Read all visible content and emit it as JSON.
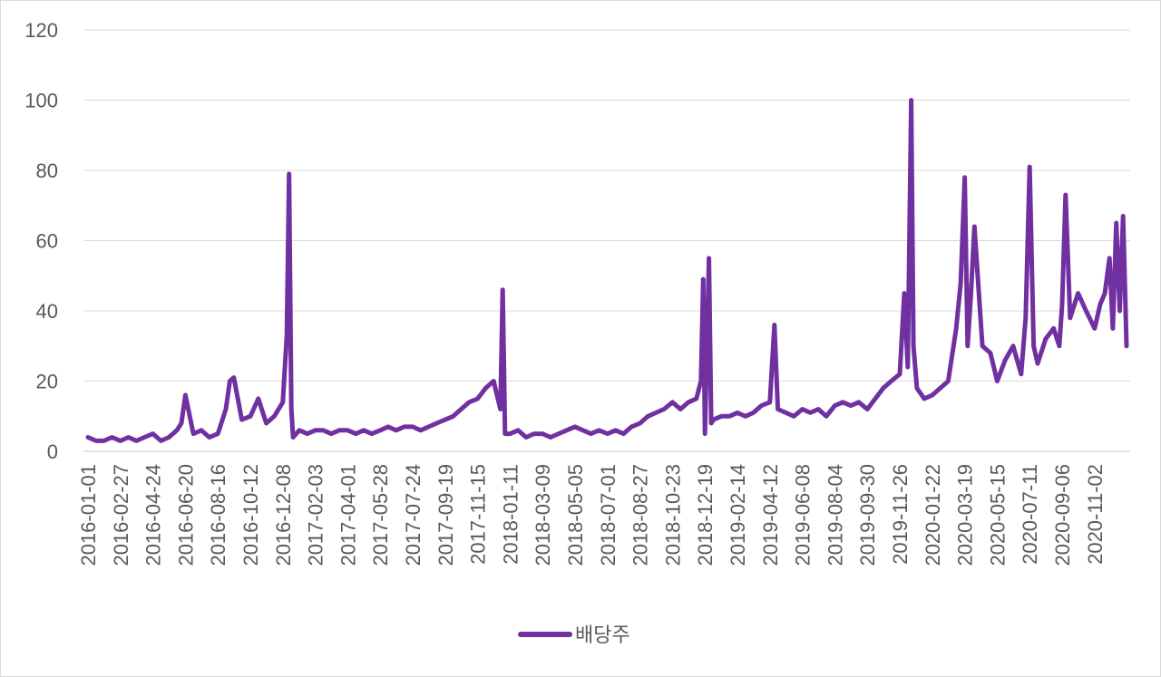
{
  "chart_data": {
    "type": "line",
    "title": "",
    "xlabel": "",
    "ylabel": "",
    "ylim": [
      0,
      120
    ],
    "yticks": [
      0,
      20,
      40,
      60,
      80,
      100,
      120
    ],
    "grid": "horizontal",
    "legend_position": "bottom",
    "series_color": "#7030A0",
    "grid_color": "#d9d9d9",
    "x_tick_labels": [
      "2016-01-01",
      "2016-02-27",
      "2016-04-24",
      "2016-06-20",
      "2016-08-16",
      "2016-10-12",
      "2016-12-08",
      "2017-02-03",
      "2017-04-01",
      "2017-05-28",
      "2017-07-24",
      "2017-09-19",
      "2017-11-15",
      "2018-01-11",
      "2018-03-09",
      "2018-05-05",
      "2018-07-01",
      "2018-08-27",
      "2018-10-23",
      "2018-12-19",
      "2019-02-14",
      "2019-04-12",
      "2019-06-08",
      "2019-08-04",
      "2019-09-30",
      "2019-11-26",
      "2020-01-22",
      "2020-03-19",
      "2020-05-15",
      "2020-07-11",
      "2020-09-06",
      "2020-11-02"
    ],
    "series": [
      {
        "name": "배당주",
        "x": [
          "2016-01-01",
          "2016-01-15",
          "2016-01-29",
          "2016-02-12",
          "2016-02-27",
          "2016-03-12",
          "2016-03-26",
          "2016-04-09",
          "2016-04-24",
          "2016-05-08",
          "2016-05-22",
          "2016-06-05",
          "2016-06-13",
          "2016-06-20",
          "2016-07-04",
          "2016-07-18",
          "2016-08-01",
          "2016-08-16",
          "2016-08-30",
          "2016-09-06",
          "2016-09-13",
          "2016-09-27",
          "2016-10-12",
          "2016-10-26",
          "2016-11-09",
          "2016-11-23",
          "2016-12-08",
          "2016-12-15",
          "2016-12-19",
          "2016-12-23",
          "2016-12-26",
          "2017-01-06",
          "2017-01-20",
          "2017-02-03",
          "2017-02-17",
          "2017-03-03",
          "2017-03-17",
          "2017-04-01",
          "2017-04-15",
          "2017-04-29",
          "2017-05-13",
          "2017-05-28",
          "2017-06-11",
          "2017-06-25",
          "2017-07-09",
          "2017-07-24",
          "2017-08-07",
          "2017-08-21",
          "2017-09-04",
          "2017-09-19",
          "2017-10-03",
          "2017-10-17",
          "2017-10-31",
          "2017-11-15",
          "2017-11-29",
          "2017-12-13",
          "2017-12-25",
          "2017-12-29",
          "2018-01-02",
          "2018-01-11",
          "2018-01-25",
          "2018-02-08",
          "2018-02-22",
          "2018-03-09",
          "2018-03-23",
          "2018-04-06",
          "2018-04-20",
          "2018-05-05",
          "2018-05-19",
          "2018-06-02",
          "2018-06-16",
          "2018-07-01",
          "2018-07-15",
          "2018-07-29",
          "2018-08-12",
          "2018-08-27",
          "2018-09-10",
          "2018-09-24",
          "2018-10-08",
          "2018-10-23",
          "2018-11-06",
          "2018-11-20",
          "2018-12-04",
          "2018-12-12",
          "2018-12-16",
          "2018-12-19",
          "2018-12-26",
          "2018-12-30",
          "2019-01-03",
          "2019-01-17",
          "2019-01-31",
          "2019-02-14",
          "2019-02-28",
          "2019-03-14",
          "2019-03-28",
          "2019-04-12",
          "2019-04-20",
          "2019-04-26",
          "2019-05-10",
          "2019-05-24",
          "2019-06-08",
          "2019-06-22",
          "2019-07-06",
          "2019-07-20",
          "2019-08-04",
          "2019-08-18",
          "2019-09-01",
          "2019-09-15",
          "2019-09-30",
          "2019-10-14",
          "2019-10-28",
          "2019-11-11",
          "2019-11-26",
          "2019-12-04",
          "2019-12-10",
          "2019-12-16",
          "2019-12-20",
          "2019-12-26",
          "2020-01-08",
          "2020-01-22",
          "2020-02-05",
          "2020-02-19",
          "2020-03-04",
          "2020-03-12",
          "2020-03-19",
          "2020-03-24",
          "2020-03-30",
          "2020-04-05",
          "2020-04-19",
          "2020-05-03",
          "2020-05-15",
          "2020-05-29",
          "2020-06-12",
          "2020-06-26",
          "2020-07-04",
          "2020-07-11",
          "2020-07-18",
          "2020-07-25",
          "2020-08-08",
          "2020-08-22",
          "2020-09-01",
          "2020-09-06",
          "2020-09-12",
          "2020-09-20",
          "2020-10-04",
          "2020-10-18",
          "2020-11-02",
          "2020-11-12",
          "2020-11-20",
          "2020-11-28",
          "2020-12-04",
          "2020-12-10",
          "2020-12-16",
          "2020-12-22",
          "2020-12-28"
        ],
        "values": [
          4,
          3,
          3,
          4,
          3,
          4,
          3,
          4,
          5,
          3,
          4,
          6,
          8,
          16,
          5,
          6,
          4,
          5,
          12,
          20,
          21,
          9,
          10,
          15,
          8,
          10,
          14,
          33,
          79,
          12,
          4,
          6,
          5,
          6,
          6,
          5,
          6,
          6,
          5,
          6,
          5,
          6,
          7,
          6,
          7,
          7,
          6,
          7,
          8,
          9,
          10,
          12,
          14,
          15,
          18,
          20,
          12,
          46,
          5,
          5,
          6,
          4,
          5,
          5,
          4,
          5,
          6,
          7,
          6,
          5,
          6,
          5,
          6,
          5,
          7,
          8,
          10,
          11,
          12,
          14,
          12,
          14,
          15,
          20,
          49,
          5,
          55,
          8,
          9,
          10,
          10,
          11,
          10,
          11,
          13,
          14,
          36,
          12,
          11,
          10,
          12,
          11,
          12,
          10,
          13,
          14,
          13,
          14,
          12,
          15,
          18,
          20,
          22,
          45,
          24,
          100,
          30,
          18,
          15,
          16,
          18,
          20,
          35,
          48,
          78,
          30,
          45,
          64,
          30,
          28,
          20,
          26,
          30,
          22,
          38,
          81,
          30,
          25,
          32,
          35,
          30,
          42,
          73,
          38,
          45,
          40,
          35,
          42,
          45,
          55,
          35,
          65,
          40,
          67,
          30
        ]
      }
    ]
  }
}
